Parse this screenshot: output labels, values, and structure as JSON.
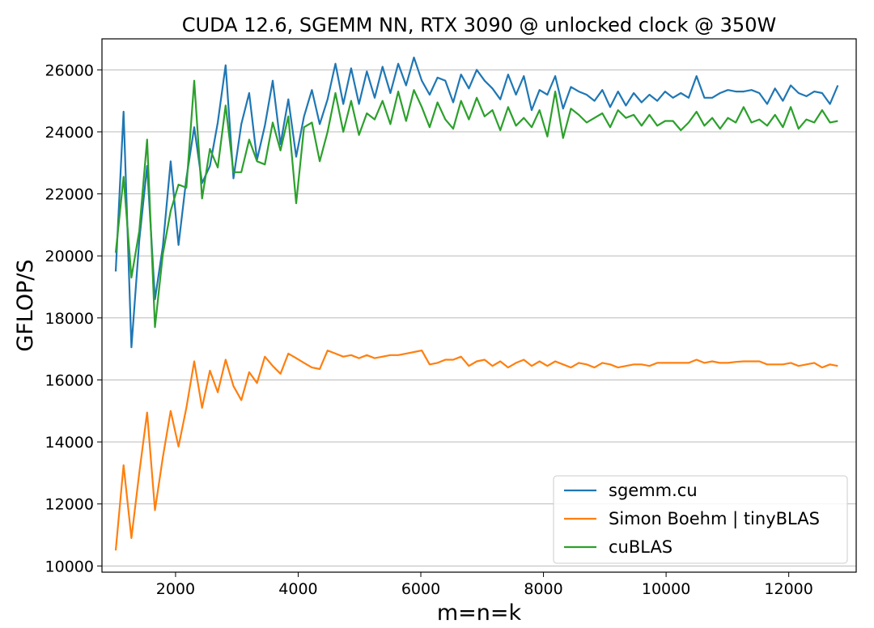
{
  "chart_data": {
    "type": "line",
    "title": "CUDA 12.6, SGEMM NN, RTX 3090 @ unlocked clock @ 350W",
    "xlabel": "m=n=k",
    "ylabel": "GFLOP/S",
    "xlim": [
      800,
      13100
    ],
    "ylim": [
      9800,
      27000
    ],
    "xticks": [
      2000,
      4000,
      6000,
      8000,
      10000,
      12000
    ],
    "xtick_labels": [
      "2000",
      "4000",
      "6000",
      "8000",
      "10000",
      "12000"
    ],
    "yticks": [
      10000,
      12000,
      14000,
      16000,
      18000,
      20000,
      22000,
      24000,
      26000
    ],
    "ytick_labels": [
      "10000",
      "12000",
      "14000",
      "16000",
      "18000",
      "20000",
      "22000",
      "24000",
      "26000"
    ],
    "grid": "horizontal",
    "legend_position": "lower-right",
    "x": [
      1024,
      1152,
      1280,
      1408,
      1536,
      1664,
      1792,
      1920,
      2048,
      2176,
      2304,
      2432,
      2560,
      2688,
      2816,
      2944,
      3072,
      3200,
      3328,
      3456,
      3584,
      3712,
      3840,
      3968,
      4096,
      4224,
      4352,
      4480,
      4608,
      4736,
      4864,
      4992,
      5120,
      5248,
      5376,
      5504,
      5632,
      5760,
      5888,
      6016,
      6144,
      6272,
      6400,
      6528,
      6656,
      6784,
      6912,
      7040,
      7168,
      7296,
      7424,
      7552,
      7680,
      7808,
      7936,
      8064,
      8192,
      8320,
      8448,
      8576,
      8704,
      8832,
      8960,
      9088,
      9216,
      9344,
      9472,
      9600,
      9728,
      9856,
      9984,
      10112,
      10240,
      10368,
      10496,
      10624,
      10752,
      10880,
      11008,
      11136,
      11264,
      11392,
      11520,
      11648,
      11776,
      11904,
      12032,
      12160,
      12288,
      12416,
      12544,
      12672,
      12800
    ],
    "series": [
      {
        "name": "sgemm.cu",
        "color": "#1f77b4",
        "values": [
          19500,
          24650,
          17050,
          20500,
          22900,
          18600,
          20300,
          23050,
          20350,
          22500,
          24150,
          22350,
          22900,
          24300,
          26150,
          22500,
          24250,
          25250,
          23100,
          24200,
          25650,
          23600,
          25050,
          23200,
          24500,
          25350,
          24250,
          25050,
          26200,
          24900,
          26050,
          24900,
          25950,
          25100,
          26100,
          25250,
          26200,
          25500,
          26400,
          25650,
          25200,
          25750,
          25650,
          24950,
          25850,
          25400,
          26000,
          25650,
          25400,
          25050,
          25850,
          25200,
          25800,
          24700,
          25350,
          25200,
          25800,
          24750,
          25450,
          25300,
          25200,
          25000,
          25350,
          24800,
          25300,
          24850,
          25250,
          24950,
          25200,
          25000,
          25300,
          25100,
          25250,
          25100,
          25800,
          25100,
          25100,
          25250,
          25350,
          25300,
          25300,
          25350,
          25250,
          24900,
          25400,
          25000,
          25500,
          25250,
          25150,
          25300,
          25250,
          24900,
          25500
        ]
      },
      {
        "name": "Simon Boehm | tinyBLAS",
        "color": "#ff7f0e",
        "values": [
          10500,
          13250,
          10900,
          13000,
          14950,
          11800,
          13500,
          15000,
          13850,
          15100,
          16600,
          15100,
          16300,
          15600,
          16650,
          15800,
          15350,
          16250,
          15900,
          16750,
          16450,
          16200,
          16850,
          16700,
          16550,
          16400,
          16350,
          16950,
          16850,
          16750,
          16800,
          16700,
          16800,
          16700,
          16750,
          16800,
          16800,
          16850,
          16900,
          16950,
          16500,
          16550,
          16650,
          16650,
          16750,
          16450,
          16600,
          16650,
          16450,
          16600,
          16400,
          16550,
          16650,
          16450,
          16600,
          16450,
          16600,
          16500,
          16400,
          16550,
          16500,
          16400,
          16550,
          16500,
          16400,
          16450,
          16500,
          16500,
          16450,
          16550,
          16550,
          16550,
          16550,
          16550,
          16650,
          16550,
          16600,
          16550,
          16550,
          16580,
          16600,
          16600,
          16600,
          16500,
          16500,
          16500,
          16550,
          16450,
          16500,
          16550,
          16400,
          16500,
          16450
        ]
      },
      {
        "name": "cuBLAS",
        "color": "#2ca02c",
        "values": [
          20100,
          22550,
          19300,
          20800,
          23750,
          17700,
          20050,
          21450,
          22300,
          22200,
          25650,
          21850,
          23450,
          22850,
          24850,
          22700,
          22700,
          23750,
          23050,
          22950,
          24300,
          23400,
          24500,
          21700,
          24150,
          24300,
          23050,
          24000,
          25250,
          24000,
          25000,
          23900,
          24600,
          24400,
          25000,
          24250,
          25300,
          24350,
          25350,
          24800,
          24150,
          24950,
          24400,
          24100,
          25000,
          24400,
          25100,
          24500,
          24700,
          24050,
          24800,
          24200,
          24450,
          24150,
          24700,
          23850,
          25300,
          23800,
          24750,
          24550,
          24300,
          24450,
          24600,
          24150,
          24700,
          24450,
          24550,
          24200,
          24550,
          24200,
          24350,
          24350,
          24050,
          24300,
          24650,
          24200,
          24450,
          24100,
          24450,
          24300,
          24800,
          24300,
          24400,
          24200,
          24550,
          24150,
          24800,
          24100,
          24400,
          24300,
          24700,
          24300,
          24350
        ]
      }
    ]
  }
}
